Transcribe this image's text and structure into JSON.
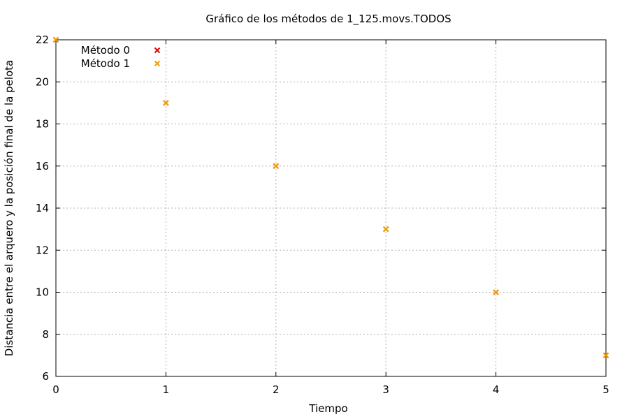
{
  "chart_data": {
    "type": "scatter",
    "title": "Gráfico de los métodos de 1_125.movs.TODOS",
    "xlabel": "Tiempo",
    "ylabel": "Distancia entre el arquero y la posición final de la pelota",
    "xlim": [
      0,
      5
    ],
    "ylim": [
      6,
      22
    ],
    "xticks": [
      0,
      1,
      2,
      3,
      4,
      5
    ],
    "yticks": [
      6,
      8,
      10,
      12,
      14,
      16,
      18,
      20,
      22
    ],
    "grid": true,
    "legend_position": "top-left",
    "series": [
      {
        "name": "Método 0",
        "color": "#e00000",
        "marker": "x",
        "x": [
          0,
          1,
          2,
          3,
          4,
          5
        ],
        "y": [
          22,
          19,
          16,
          13,
          10,
          7
        ]
      },
      {
        "name": "Método 1",
        "color": "#f0a000",
        "marker": "x",
        "x": [
          0,
          1,
          2,
          3,
          4,
          5
        ],
        "y": [
          22,
          19,
          16,
          13,
          10,
          7
        ]
      }
    ]
  }
}
